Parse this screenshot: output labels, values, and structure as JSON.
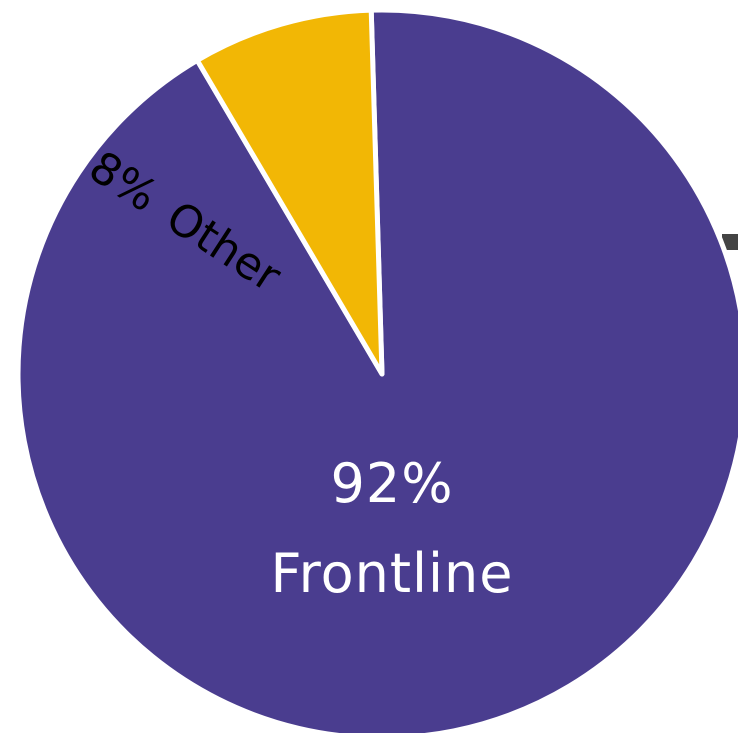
{
  "chart_data": {
    "type": "pie",
    "title": "",
    "slices": [
      {
        "name": "Frontline",
        "value": 92,
        "value_label": "92%",
        "label": "Frontline",
        "color": "#4A3D8F",
        "text_color": "#FFFFFF"
      },
      {
        "name": "Other",
        "value": 8,
        "value_label": "8%",
        "label": "Other",
        "color": "#F2B705",
        "text_color": "#000000"
      }
    ],
    "legend": "none"
  }
}
